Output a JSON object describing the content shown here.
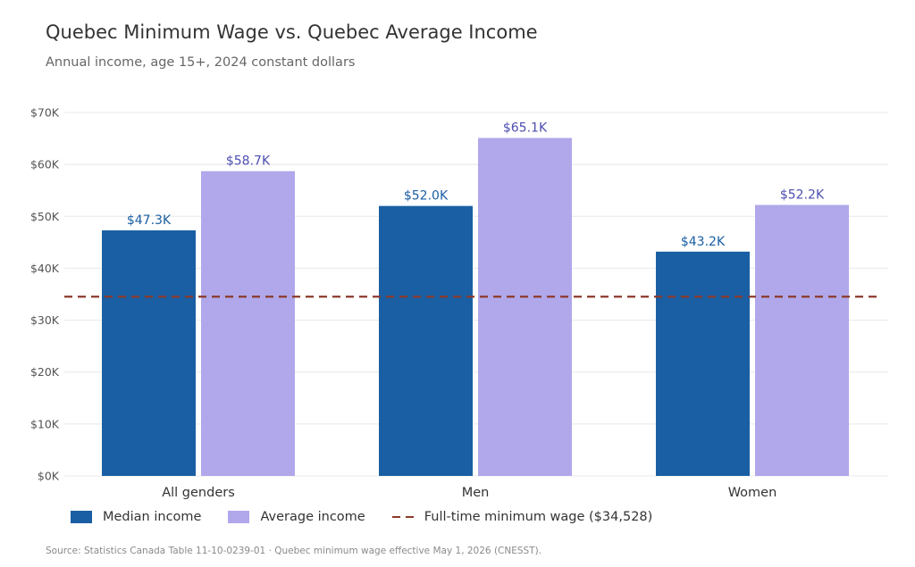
{
  "title": "Quebec Minimum Wage vs. Quebec Average Income",
  "subtitle": "Annual income, age 15+, 2024 constant dollars",
  "source": "Source: Statistics Canada Table 11-10-0239-01  ·  Quebec minimum wage effective May 1, 2026 (CNESST).",
  "colors": {
    "median": "#1a5fa3",
    "average": "#b0a8ea",
    "min_wage_line": "#8b3a2b",
    "median_label": "#1a5fa3",
    "average_label": "#4d4fb0"
  },
  "legend": {
    "median": "Median income",
    "average": "Average income",
    "min_wage": "Full-time minimum wage  ($34,528)"
  },
  "chart_data": {
    "type": "bar",
    "title": "Quebec Minimum Wage vs. Quebec Average Income",
    "subtitle": "Annual income, age 15+, 2024 constant dollars",
    "categories": [
      "All genders",
      "Men",
      "Women"
    ],
    "series": [
      {
        "name": "Median income",
        "values": [
          47300,
          52000,
          43200
        ],
        "labels": [
          "$47.3K",
          "$52.0K",
          "$43.2K"
        ]
      },
      {
        "name": "Average income",
        "values": [
          58700,
          65100,
          52200
        ],
        "labels": [
          "$58.7K",
          "$65.1K",
          "$52.2K"
        ]
      }
    ],
    "reference_line": {
      "name": "Full-time minimum wage  ($34,528)",
      "value": 34528,
      "style": "dashed"
    },
    "y_ticks": [
      0,
      10000,
      20000,
      30000,
      40000,
      50000,
      60000,
      70000
    ],
    "y_tick_labels": [
      "$0K",
      "$10K",
      "$20K",
      "$30K",
      "$40K",
      "$50K",
      "$60K",
      "$70K"
    ],
    "ylim": [
      0,
      70000
    ],
    "grid": true,
    "legend_position": "bottom-left"
  }
}
